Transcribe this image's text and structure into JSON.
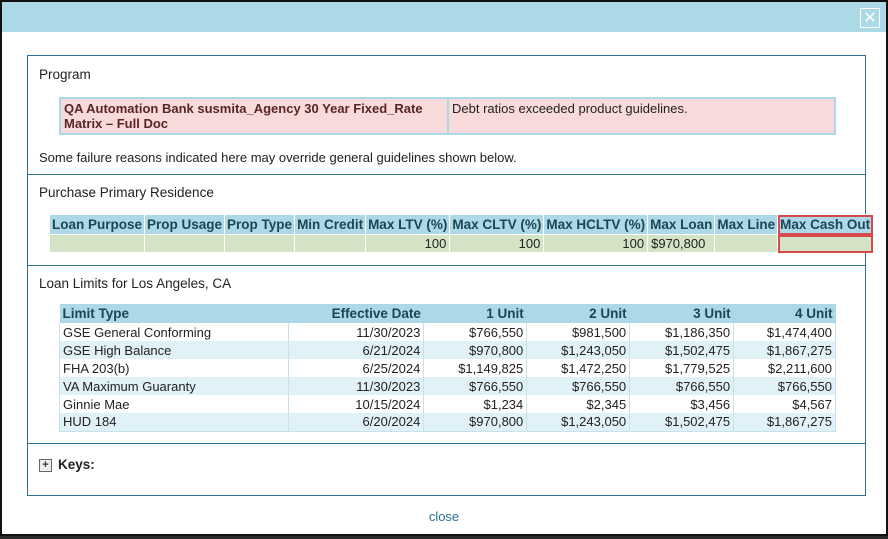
{
  "dialog": {
    "close_glyph": "✕",
    "close_link": "close"
  },
  "program": {
    "title": "Program",
    "name": "QA Automation Bank susmita_Agency 30 Year Fixed_Rate Matrix – Full Doc",
    "reason": "Debt ratios exceeded product guidelines.",
    "note": "Some failure reasons indicated here may override general guidelines shown below."
  },
  "purchase": {
    "title": "Purchase Primary Residence",
    "headers": [
      "Loan Purpose",
      "Prop Usage",
      "Prop Type",
      "Min Credit",
      "Max LTV (%)",
      "Max CLTV (%)",
      "Max HCLTV (%)",
      "Max Loan",
      "Max Line",
      "Max Cash Out"
    ],
    "values": [
      "",
      "",
      "",
      "",
      "100",
      "100",
      "100",
      "$970,800",
      "",
      ""
    ]
  },
  "limits": {
    "title": "Loan Limits for Los Angeles, CA",
    "headers": [
      "Limit Type",
      "Effective Date",
      "1 Unit",
      "2 Unit",
      "3 Unit",
      "4 Unit"
    ],
    "rows": [
      [
        "GSE General Conforming",
        "11/30/2023",
        "$766,550",
        "$981,500",
        "$1,186,350",
        "$1,474,400"
      ],
      [
        "GSE High Balance",
        "6/21/2024",
        "$970,800",
        "$1,243,050",
        "$1,502,475",
        "$1,867,275"
      ],
      [
        "FHA 203(b)",
        "6/25/2024",
        "$1,149,825",
        "$1,472,250",
        "$1,779,525",
        "$2,211,600"
      ],
      [
        "VA Maximum Guaranty",
        "11/30/2023",
        "$766,550",
        "$766,550",
        "$766,550",
        "$766,550"
      ],
      [
        "Ginnie Mae",
        "10/15/2024",
        "$1,234",
        "$2,345",
        "$3,456",
        "$4,567"
      ],
      [
        "HUD 184",
        "6/20/2024",
        "$970,800",
        "$1,243,050",
        "$1,502,475",
        "$1,867,275"
      ]
    ]
  },
  "keys": {
    "label": "Keys:",
    "expander_glyph": "+"
  }
}
